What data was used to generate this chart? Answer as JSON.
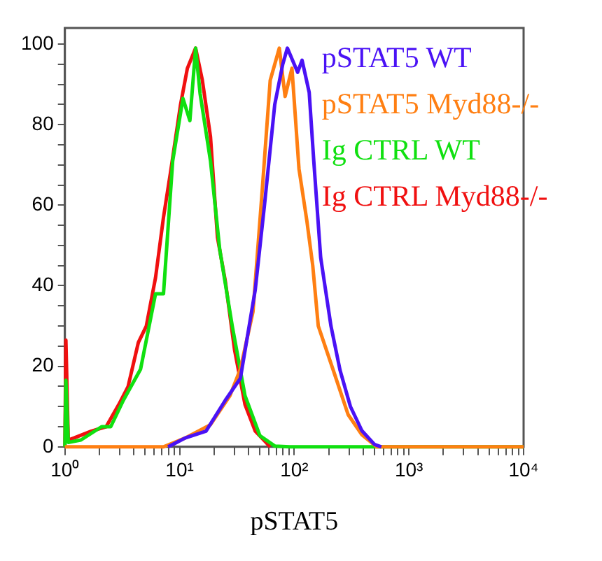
{
  "chart_data": {
    "type": "line",
    "xlabel": "pSTAT5",
    "log": "x",
    "legend": "top right",
    "grid": false,
    "marker": "none",
    "line_style": "solid",
    "xlim": [
      1,
      10000
    ],
    "xticks": [
      {
        "value": 1,
        "label": "10⁰"
      },
      {
        "value": 2,
        "label": null
      },
      {
        "value": 3,
        "label": null
      },
      {
        "value": 4,
        "label": null
      },
      {
        "value": 5,
        "label": null
      },
      {
        "value": 6,
        "label": null
      },
      {
        "value": 7,
        "label": null
      },
      {
        "value": 8,
        "label": null
      },
      {
        "value": 9,
        "label": null
      },
      {
        "value": 10,
        "label": "10¹"
      },
      {
        "value": 20,
        "label": null
      },
      {
        "value": 30,
        "label": null
      },
      {
        "value": 40,
        "label": null
      },
      {
        "value": 50,
        "label": null
      },
      {
        "value": 60,
        "label": null
      },
      {
        "value": 70,
        "label": null
      },
      {
        "value": 80,
        "label": null
      },
      {
        "value": 90,
        "label": null
      },
      {
        "value": 100,
        "label": "10²"
      },
      {
        "value": 200,
        "label": null
      },
      {
        "value": 300,
        "label": null
      },
      {
        "value": 400,
        "label": null
      },
      {
        "value": 500,
        "label": null
      },
      {
        "value": 600,
        "label": null
      },
      {
        "value": 700,
        "label": null
      },
      {
        "value": 800,
        "label": null
      },
      {
        "value": 900,
        "label": null
      },
      {
        "value": 1000,
        "label": "10³"
      },
      {
        "value": 2000,
        "label": null
      },
      {
        "value": 3000,
        "label": null
      },
      {
        "value": 4000,
        "label": null
      },
      {
        "value": 5000,
        "label": null
      },
      {
        "value": 6000,
        "label": null
      },
      {
        "value": 7000,
        "label": null
      },
      {
        "value": 8000,
        "label": null
      },
      {
        "value": 9000,
        "label": null
      },
      {
        "value": 10000,
        "label": "10⁴"
      }
    ],
    "ylim": [
      0,
      104
    ],
    "yticks": [
      0,
      {
        "value": 5,
        "label": null
      },
      {
        "value": 10,
        "label": null
      },
      {
        "value": 15,
        "label": null
      },
      20,
      {
        "value": 25,
        "label": null
      },
      {
        "value": 30,
        "label": null
      },
      {
        "value": 35,
        "label": null
      },
      40,
      {
        "value": 45,
        "label": null
      },
      {
        "value": 50,
        "label": null
      },
      {
        "value": 55,
        "label": null
      },
      60,
      {
        "value": 65,
        "label": null
      },
      {
        "value": 70,
        "label": null
      },
      {
        "value": 75,
        "label": null
      },
      80,
      {
        "value": 85,
        "label": null
      },
      {
        "value": 90,
        "label": null
      },
      {
        "value": 95,
        "label": null
      },
      100
    ],
    "series": [
      {
        "name": "pSTAT5 WT",
        "color": "#4a12f5",
        "x": [
          7.94,
          11.2,
          17.0,
          25.1,
          33.9,
          45.7,
          55.0,
          67.6,
          79.4,
          87.1,
          107,
          117,
          135,
          148,
          170,
          209,
          251,
          309,
          389,
          501,
          575
        ],
        "values": [
          0,
          2.2,
          3.9,
          11.6,
          17,
          39,
          60,
          85,
          95,
          99,
          93,
          96,
          88,
          71,
          47,
          30,
          19,
          10,
          4,
          0.6,
          0
        ]
      },
      {
        "name": "pSTAT5 Myd88-/-",
        "color": "#ff7f12",
        "x": [
          1,
          7.24,
          11.2,
          18.6,
          27.5,
          33.9,
          43.7,
          52.5,
          61.7,
          74.1,
          83.2,
          95.5,
          110,
          129,
          145,
          162,
          219,
          295,
          389,
          525,
          10000
        ],
        "values": [
          0,
          0,
          2.2,
          5.5,
          12.7,
          19.3,
          33.6,
          63.5,
          91,
          99,
          87,
          94,
          69,
          56,
          45,
          30,
          19,
          8,
          3,
          0,
          0
        ]
      },
      {
        "name": "Ig CTRL WT",
        "color": "#10e010",
        "x": [
          1,
          1.02,
          1.07,
          1.38,
          2.09,
          2.51,
          3.24,
          4.57,
          6.17,
          7.24,
          8.71,
          10.7,
          12.3,
          13.8,
          15.1,
          18.6,
          22.4,
          28.8,
          37.2,
          50.1,
          67.6,
          91.2,
          10000
        ],
        "values": [
          0,
          16.5,
          1.1,
          1.7,
          5,
          5,
          11.6,
          19.3,
          38,
          38,
          71,
          86.5,
          81,
          99,
          87.7,
          71,
          49,
          30,
          12.7,
          2.8,
          0.2,
          0,
          0
        ]
      },
      {
        "name": "Ig CTRL Myd88-/-",
        "color": "#f01010",
        "x": [
          1,
          1.02,
          1.07,
          1.2,
          1.7,
          2.29,
          2.95,
          3.55,
          4.37,
          5.13,
          6.17,
          7.24,
          8.32,
          10.2,
          11.7,
          13.8,
          15.8,
          18.6,
          21.4,
          25.1,
          30.2,
          37.2,
          45.7,
          61.7
        ],
        "values": [
          0,
          26.5,
          1.7,
          2.2,
          3.9,
          5,
          10.5,
          14.9,
          25.9,
          30,
          42,
          57,
          68,
          85,
          94,
          99,
          91,
          77,
          52,
          41,
          24,
          10.5,
          3.9,
          0
        ]
      }
    ]
  }
}
